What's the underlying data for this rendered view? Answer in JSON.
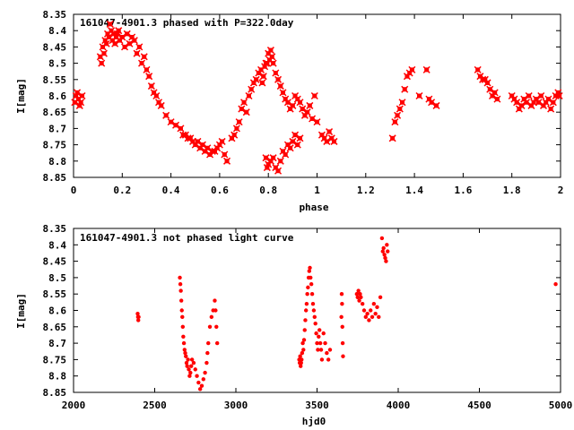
{
  "colors": {
    "points": "#ff0000",
    "axes": "#000000",
    "background": "#ffffff"
  },
  "chart_data": [
    {
      "type": "scatter",
      "title": "161047-4901.3 phased with P=322.0day",
      "xlabel": "phase",
      "ylabel": "I[mag]",
      "xlim": [
        0,
        2
      ],
      "ylim": [
        8.35,
        8.85
      ],
      "y_inverted": true,
      "grid": false,
      "marker": "cross",
      "xticks": [
        "0",
        "0.2",
        "0.4",
        "0.6",
        "0.8",
        "1",
        "1.2",
        "1.4",
        "1.6",
        "1.8",
        "2"
      ],
      "yticks": [
        "8.35",
        "8.4",
        "8.45",
        "8.5",
        "8.55",
        "8.6",
        "8.65",
        "8.7",
        "8.75",
        "8.8",
        "8.85"
      ],
      "series": [
        {
          "x": [
            0.005,
            0.01,
            0.015,
            0.02,
            0.025,
            0.03,
            0.035,
            0.11,
            0.115,
            0.12,
            0.125,
            0.13,
            0.135,
            0.14,
            0.145,
            0.15,
            0.155,
            0.16,
            0.165,
            0.17,
            0.175,
            0.18,
            0.185,
            0.19,
            0.2,
            0.21,
            0.22,
            0.23,
            0.24,
            0.25,
            0.26,
            0.27,
            0.28,
            0.29,
            0.3,
            0.31,
            0.32,
            0.33,
            0.34,
            0.35,
            0.36,
            0.38,
            0.4,
            0.42,
            0.44,
            0.45,
            0.46,
            0.47,
            0.48,
            0.49,
            0.5,
            0.51,
            0.52,
            0.53,
            0.54,
            0.55,
            0.56,
            0.57,
            0.58,
            0.59,
            0.6,
            0.61,
            0.62,
            0.63,
            0.65,
            0.66,
            0.67,
            0.68,
            0.69,
            0.7,
            0.71,
            0.72,
            0.73,
            0.74,
            0.75,
            0.76,
            0.77,
            0.775,
            0.78,
            0.785,
            0.79,
            0.795,
            0.8,
            0.805,
            0.81,
            0.815,
            0.82,
            0.83,
            0.84,
            0.85,
            0.86,
            0.87,
            0.88,
            0.89,
            0.9,
            0.91,
            0.92,
            0.93,
            0.94,
            0.95,
            0.96,
            0.97,
            0.98,
            0.99,
            1.0,
            1.02,
            1.03,
            1.04,
            1.05,
            1.06,
            1.07,
            0.79,
            0.795,
            0.8,
            0.81,
            0.82,
            0.83,
            0.84,
            0.85,
            0.86,
            0.87,
            0.88,
            0.89,
            0.9,
            0.91,
            0.92,
            0.93,
            1.31,
            1.32,
            1.33,
            1.34,
            1.35,
            1.36,
            1.37,
            1.38,
            1.39,
            1.42,
            1.45,
            1.46,
            1.47,
            1.49,
            1.66,
            1.67,
            1.68,
            1.69,
            1.7,
            1.71,
            1.72,
            1.73,
            1.74,
            1.8,
            1.81,
            1.82,
            1.83,
            1.84,
            1.85,
            1.86,
            1.87,
            1.88,
            1.89,
            1.9,
            1.91,
            1.92,
            1.93,
            1.94,
            1.95,
            1.96,
            1.97,
            1.98,
            1.99,
            1.995
          ],
          "y": [
            8.62,
            8.6,
            8.59,
            8.61,
            8.63,
            8.62,
            8.6,
            8.48,
            8.5,
            8.45,
            8.47,
            8.43,
            8.44,
            8.41,
            8.42,
            8.38,
            8.4,
            8.43,
            8.41,
            8.44,
            8.42,
            8.41,
            8.4,
            8.43,
            8.42,
            8.45,
            8.41,
            8.44,
            8.42,
            8.43,
            8.47,
            8.45,
            8.5,
            8.48,
            8.52,
            8.54,
            8.57,
            8.59,
            8.6,
            8.62,
            8.63,
            8.66,
            8.68,
            8.69,
            8.7,
            8.72,
            8.72,
            8.73,
            8.73,
            8.74,
            8.75,
            8.74,
            8.76,
            8.75,
            8.77,
            8.76,
            8.78,
            8.77,
            8.77,
            8.76,
            8.75,
            8.74,
            8.78,
            8.8,
            8.73,
            8.72,
            8.7,
            8.68,
            8.64,
            8.62,
            8.65,
            8.6,
            8.58,
            8.56,
            8.55,
            8.53,
            8.52,
            8.56,
            8.54,
            8.51,
            8.5,
            8.5,
            8.47,
            8.49,
            8.46,
            8.48,
            8.5,
            8.53,
            8.55,
            8.57,
            8.59,
            8.61,
            8.62,
            8.64,
            8.63,
            8.6,
            8.61,
            8.62,
            8.64,
            8.66,
            8.65,
            8.63,
            8.67,
            8.6,
            8.68,
            8.72,
            8.73,
            8.74,
            8.71,
            8.73,
            8.74,
            8.79,
            8.82,
            8.81,
            8.8,
            8.79,
            8.82,
            8.83,
            8.8,
            8.77,
            8.78,
            8.75,
            8.76,
            8.74,
            8.72,
            8.75,
            8.73,
            8.73,
            8.68,
            8.66,
            8.64,
            8.62,
            8.58,
            8.54,
            8.53,
            8.52,
            8.6,
            8.52,
            8.61,
            8.62,
            8.63,
            8.52,
            8.54,
            8.55,
            8.55,
            8.56,
            8.58,
            8.6,
            8.59,
            8.61,
            8.6,
            8.61,
            8.62,
            8.64,
            8.63,
            8.61,
            8.62,
            8.6,
            8.63,
            8.62,
            8.61,
            8.62,
            8.6,
            8.63,
            8.62,
            8.61,
            8.64,
            8.62,
            8.6,
            8.59,
            8.6
          ]
        }
      ]
    },
    {
      "type": "scatter",
      "title": "161047-4901.3 not phased light curve",
      "xlabel": "hjd0",
      "ylabel": "I[mag]",
      "xlim": [
        2000,
        5000
      ],
      "ylim": [
        8.35,
        8.85
      ],
      "y_inverted": true,
      "grid": false,
      "marker": "dot",
      "xticks": [
        "2000",
        "2500",
        "3000",
        "3500",
        "4000",
        "4500",
        "5000"
      ],
      "yticks": [
        "8.35",
        "8.4",
        "8.45",
        "8.5",
        "8.55",
        "8.6",
        "8.65",
        "8.7",
        "8.75",
        "8.8",
        "8.85"
      ],
      "series": [
        {
          "x": [
            2395,
            2397,
            2399,
            2401,
            2655,
            2658,
            2661,
            2664,
            2667,
            2670,
            2673,
            2676,
            2680,
            2684,
            2688,
            2692,
            2696,
            2700,
            2705,
            2710,
            2715,
            2720,
            2725,
            2730,
            2740,
            2750,
            2760,
            2770,
            2780,
            2790,
            2800,
            2810,
            2820,
            2825,
            2830,
            2840,
            2850,
            2860,
            2870,
            2875,
            2880,
            2885,
            3390,
            3393,
            3396,
            3399,
            3402,
            3405,
            3408,
            3412,
            3416,
            3420,
            3424,
            3428,
            3432,
            3436,
            3440,
            3444,
            3448,
            3452,
            3456,
            3460,
            3465,
            3470,
            3475,
            3480,
            3485,
            3490,
            3495,
            3500,
            3505,
            3510,
            3515,
            3520,
            3525,
            3530,
            3540,
            3550,
            3560,
            3570,
            3580,
            3650,
            3652,
            3654,
            3656,
            3658,
            3660,
            3745,
            3750,
            3755,
            3760,
            3765,
            3770,
            3780,
            3790,
            3800,
            3810,
            3820,
            3830,
            3840,
            3850,
            3860,
            3870,
            3880,
            3890,
            3900,
            3905,
            3910,
            3915,
            3920,
            3925,
            3930,
            3935,
            4970
          ],
          "y": [
            8.61,
            8.62,
            8.63,
            8.62,
            8.5,
            8.52,
            8.54,
            8.57,
            8.6,
            8.62,
            8.65,
            8.68,
            8.7,
            8.72,
            8.73,
            8.74,
            8.76,
            8.77,
            8.75,
            8.78,
            8.8,
            8.79,
            8.77,
            8.75,
            8.76,
            8.78,
            8.8,
            8.82,
            8.84,
            8.83,
            8.81,
            8.79,
            8.76,
            8.73,
            8.7,
            8.65,
            8.62,
            8.6,
            8.57,
            8.6,
            8.65,
            8.7,
            8.75,
            8.76,
            8.74,
            8.77,
            8.76,
            8.75,
            8.73,
            8.7,
            8.72,
            8.69,
            8.66,
            8.63,
            8.6,
            8.58,
            8.55,
            8.53,
            8.5,
            8.48,
            8.47,
            8.5,
            8.52,
            8.55,
            8.58,
            8.6,
            8.62,
            8.64,
            8.67,
            8.7,
            8.72,
            8.68,
            8.66,
            8.7,
            8.72,
            8.75,
            8.67,
            8.7,
            8.73,
            8.75,
            8.72,
            8.62,
            8.55,
            8.58,
            8.65,
            8.7,
            8.74,
            8.55,
            8.56,
            8.54,
            8.57,
            8.55,
            8.56,
            8.58,
            8.6,
            8.62,
            8.61,
            8.63,
            8.6,
            8.62,
            8.58,
            8.61,
            8.59,
            8.62,
            8.56,
            8.38,
            8.42,
            8.41,
            8.43,
            8.44,
            8.45,
            8.4,
            8.42,
            8.52
          ]
        }
      ]
    }
  ]
}
